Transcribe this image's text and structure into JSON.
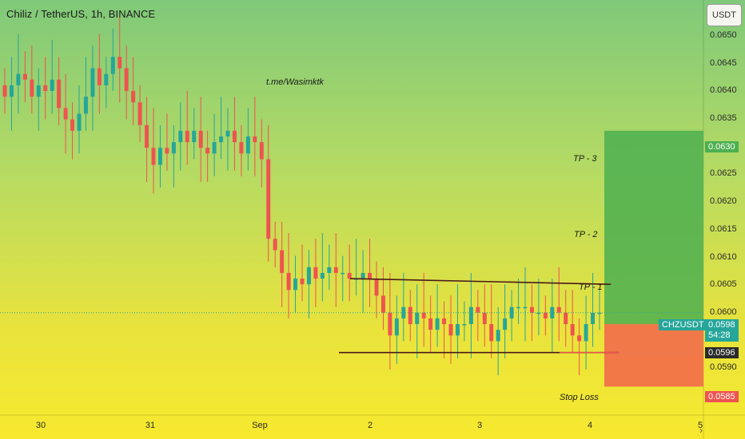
{
  "header": {
    "symbol": "Chiliz / TetherUS, 1h, BINANCE",
    "currency": "USDT"
  },
  "annotations": {
    "watermark": "t.me/Wasimktk",
    "tp1": "TP - 1",
    "tp2": "TP - 2",
    "tp3": "TP - 3",
    "stop_loss": "Stop Loss"
  },
  "y_ticks": [
    "0.0650",
    "0.0645",
    "0.0640",
    "0.0635",
    "0.0625",
    "0.0620",
    "0.0615",
    "0.0610",
    "0.0605",
    "0.0600",
    "0.0590"
  ],
  "x_ticks": [
    "30",
    "31",
    "Sep",
    "2",
    "3",
    "4",
    "5"
  ],
  "badges": {
    "tp_price": "0.0630",
    "symbol": "CHZUSDT",
    "last_price": "0.0598",
    "countdown": "54:28",
    "entry_price": "0.0596",
    "stop_price": "0.0585"
  },
  "colors": {
    "up": "#26a69a",
    "down": "#ef5350",
    "profit_zone": "#4caf50",
    "loss_zone": "#f26b4a",
    "trendline": "#4a1a1a"
  },
  "chart_data": {
    "type": "candlestick",
    "x_labels": [
      "30",
      "31",
      "Sep",
      "2",
      "3",
      "4",
      "5"
    ],
    "ylim": [
      0.058,
      0.0653
    ],
    "closes": [
      0.0636,
      0.0638,
      0.064,
      0.0639,
      0.0636,
      0.0638,
      0.0637,
      0.0639,
      0.0634,
      0.0632,
      0.063,
      0.0633,
      0.0636,
      0.0641,
      0.0638,
      0.064,
      0.0643,
      0.0641,
      0.0637,
      0.0635,
      0.0631,
      0.0627,
      0.0624,
      0.0627,
      0.0626,
      0.0628,
      0.063,
      0.0628,
      0.063,
      0.0627,
      0.0626,
      0.0628,
      0.0629,
      0.063,
      0.0628,
      0.0626,
      0.0629,
      0.0628,
      0.0625,
      0.0611,
      0.0609,
      0.0605,
      0.0602,
      0.0604,
      0.0603,
      0.0606,
      0.0604,
      0.0605,
      0.0606,
      0.0605,
      0.0605,
      0.0604,
      0.0604,
      0.0605,
      0.0604,
      0.0601,
      0.0598,
      0.0594,
      0.0597,
      0.0599,
      0.0596,
      0.0598,
      0.0597,
      0.0595,
      0.0597,
      0.0596,
      0.0594,
      0.0596,
      0.0596,
      0.0599,
      0.0598,
      0.0596,
      0.0593,
      0.0595,
      0.0597,
      0.0599,
      0.0599,
      0.0599,
      0.0598,
      0.0598,
      0.0597,
      0.0599,
      0.0598,
      0.0596,
      0.0594,
      0.0593,
      0.0596,
      0.0598,
      0.0598
    ],
    "trendlines": [
      {
        "x": [
          0.47,
          0.82
        ],
        "y": [
          0.0604,
          0.0603
        ]
      },
      {
        "x": [
          0.455,
          0.83
        ],
        "y": [
          0.0591,
          0.0591
        ]
      }
    ],
    "position": {
      "entry": 0.0596,
      "target": 0.063,
      "stop": 0.0585
    },
    "targets": {
      "tp1": 0.0604,
      "tp2": 0.0614,
      "tp3": 0.0628
    }
  }
}
